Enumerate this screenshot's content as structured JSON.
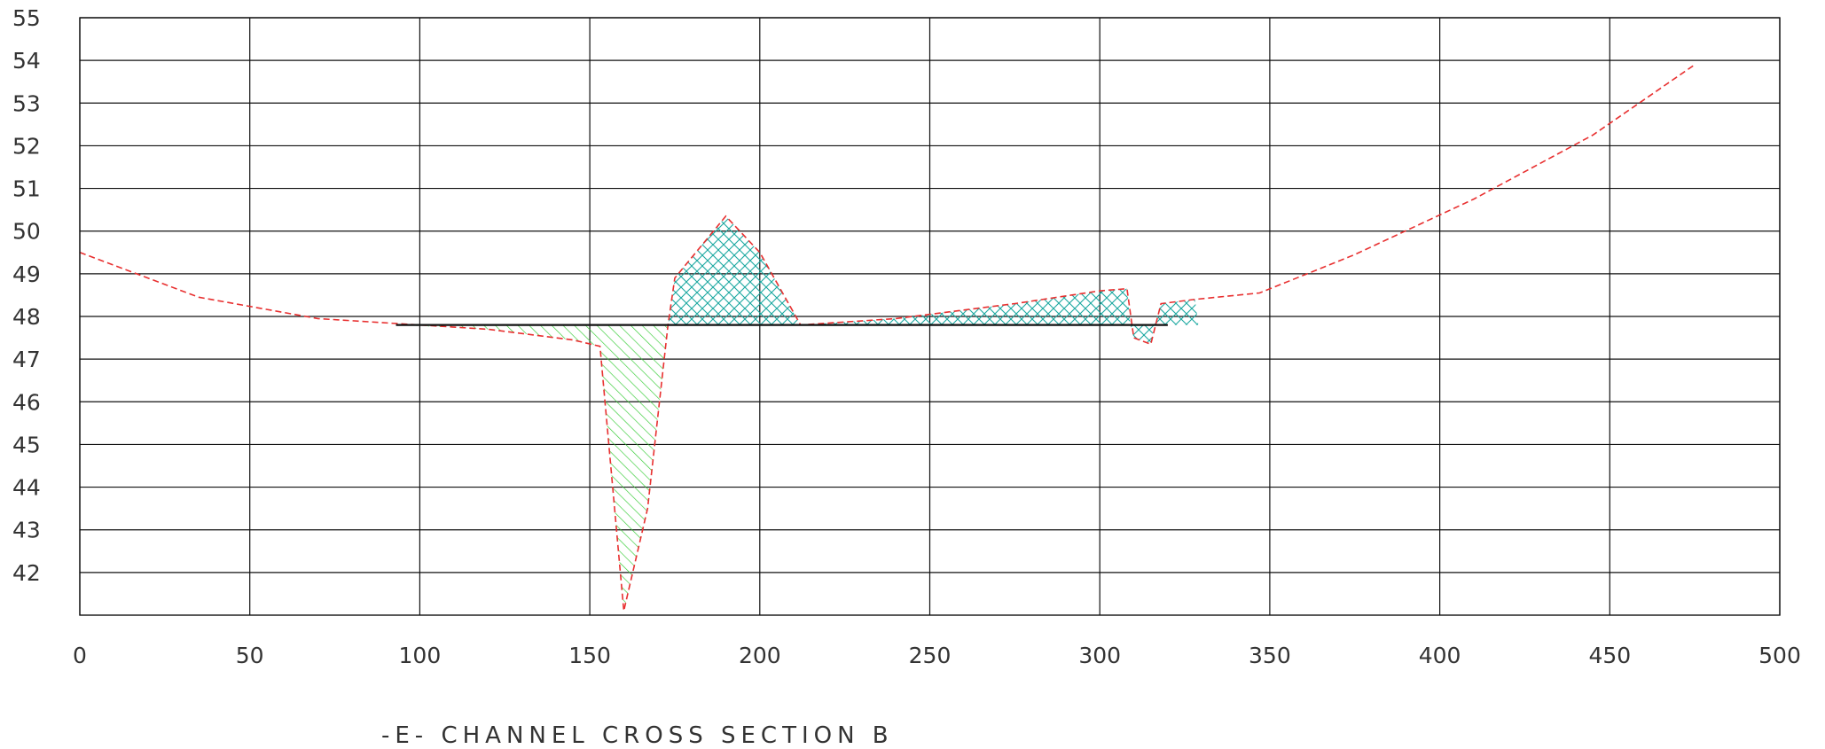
{
  "title": "-E- CHANNEL CROSS SECTION B",
  "chart_data": {
    "type": "area",
    "title": "-E- CHANNEL CROSS SECTION B",
    "xlabel": "",
    "ylabel": "",
    "xlim": [
      0,
      500
    ],
    "ylim": [
      41,
      55
    ],
    "x_ticks": [
      "0",
      "50",
      "100",
      "150",
      "200",
      "250",
      "300",
      "350",
      "400",
      "450",
      "500"
    ],
    "y_ticks": [
      "42",
      "43",
      "44",
      "45",
      "46",
      "47",
      "48",
      "49",
      "50",
      "51",
      "52",
      "53",
      "54",
      "55"
    ],
    "grid": true,
    "colors": {
      "existing_ground": "#e83030",
      "cut_hatch": "#33cc33",
      "fill_hatch": "#1aa8a0",
      "grid": "#111111"
    },
    "series": [
      {
        "values": [
          [
            0,
            49.5
          ],
          [
            35,
            48.45
          ],
          [
            70,
            47.95
          ],
          [
            120,
            47.7
          ],
          [
            145,
            47.45
          ],
          [
            153,
            47.3
          ],
          [
            160,
            41.1
          ],
          [
            167,
            43.5
          ],
          [
            173,
            47.8
          ],
          [
            175,
            48.9
          ],
          [
            190,
            50.35
          ],
          [
            200,
            49.5
          ],
          [
            212,
            47.8
          ],
          [
            240,
            47.95
          ],
          [
            275,
            48.3
          ],
          [
            300,
            48.6
          ],
          [
            308,
            48.65
          ],
          [
            310,
            47.5
          ],
          [
            315,
            47.35
          ],
          [
            318,
            48.3
          ],
          [
            328,
            48.4
          ],
          [
            347,
            48.55
          ],
          [
            375,
            49.45
          ],
          [
            410,
            50.75
          ],
          [
            445,
            52.25
          ],
          [
            475,
            53.9
          ]
        ]
      },
      {
        "values": [
          [
            93,
            47.8
          ],
          [
            320,
            47.8
          ]
        ]
      }
    ],
    "regions": [
      {
        "type": "cut",
        "polygon": [
          [
            93,
            47.8
          ],
          [
            120,
            47.7
          ],
          [
            145,
            47.45
          ],
          [
            153,
            47.3
          ],
          [
            160,
            41.1
          ],
          [
            167,
            43.5
          ],
          [
            173,
            47.8
          ]
        ]
      },
      {
        "type": "fill",
        "polygon": [
          [
            173,
            47.8
          ],
          [
            175,
            48.9
          ],
          [
            190,
            50.35
          ],
          [
            200,
            49.5
          ],
          [
            212,
            47.8
          ]
        ]
      },
      {
        "type": "fill",
        "polygon": [
          [
            212,
            47.8
          ],
          [
            240,
            47.95
          ],
          [
            275,
            48.3
          ],
          [
            300,
            48.6
          ],
          [
            308,
            48.65
          ],
          [
            309,
            47.8
          ]
        ]
      },
      {
        "type": "fill",
        "polygon": [
          [
            309,
            47.8
          ],
          [
            310,
            47.5
          ],
          [
            315,
            47.35
          ],
          [
            316,
            47.8
          ]
        ]
      },
      {
        "type": "fill",
        "polygon": [
          [
            316,
            47.8
          ],
          [
            318,
            48.3
          ],
          [
            328,
            48.4
          ],
          [
            329,
            47.8
          ]
        ]
      }
    ]
  }
}
